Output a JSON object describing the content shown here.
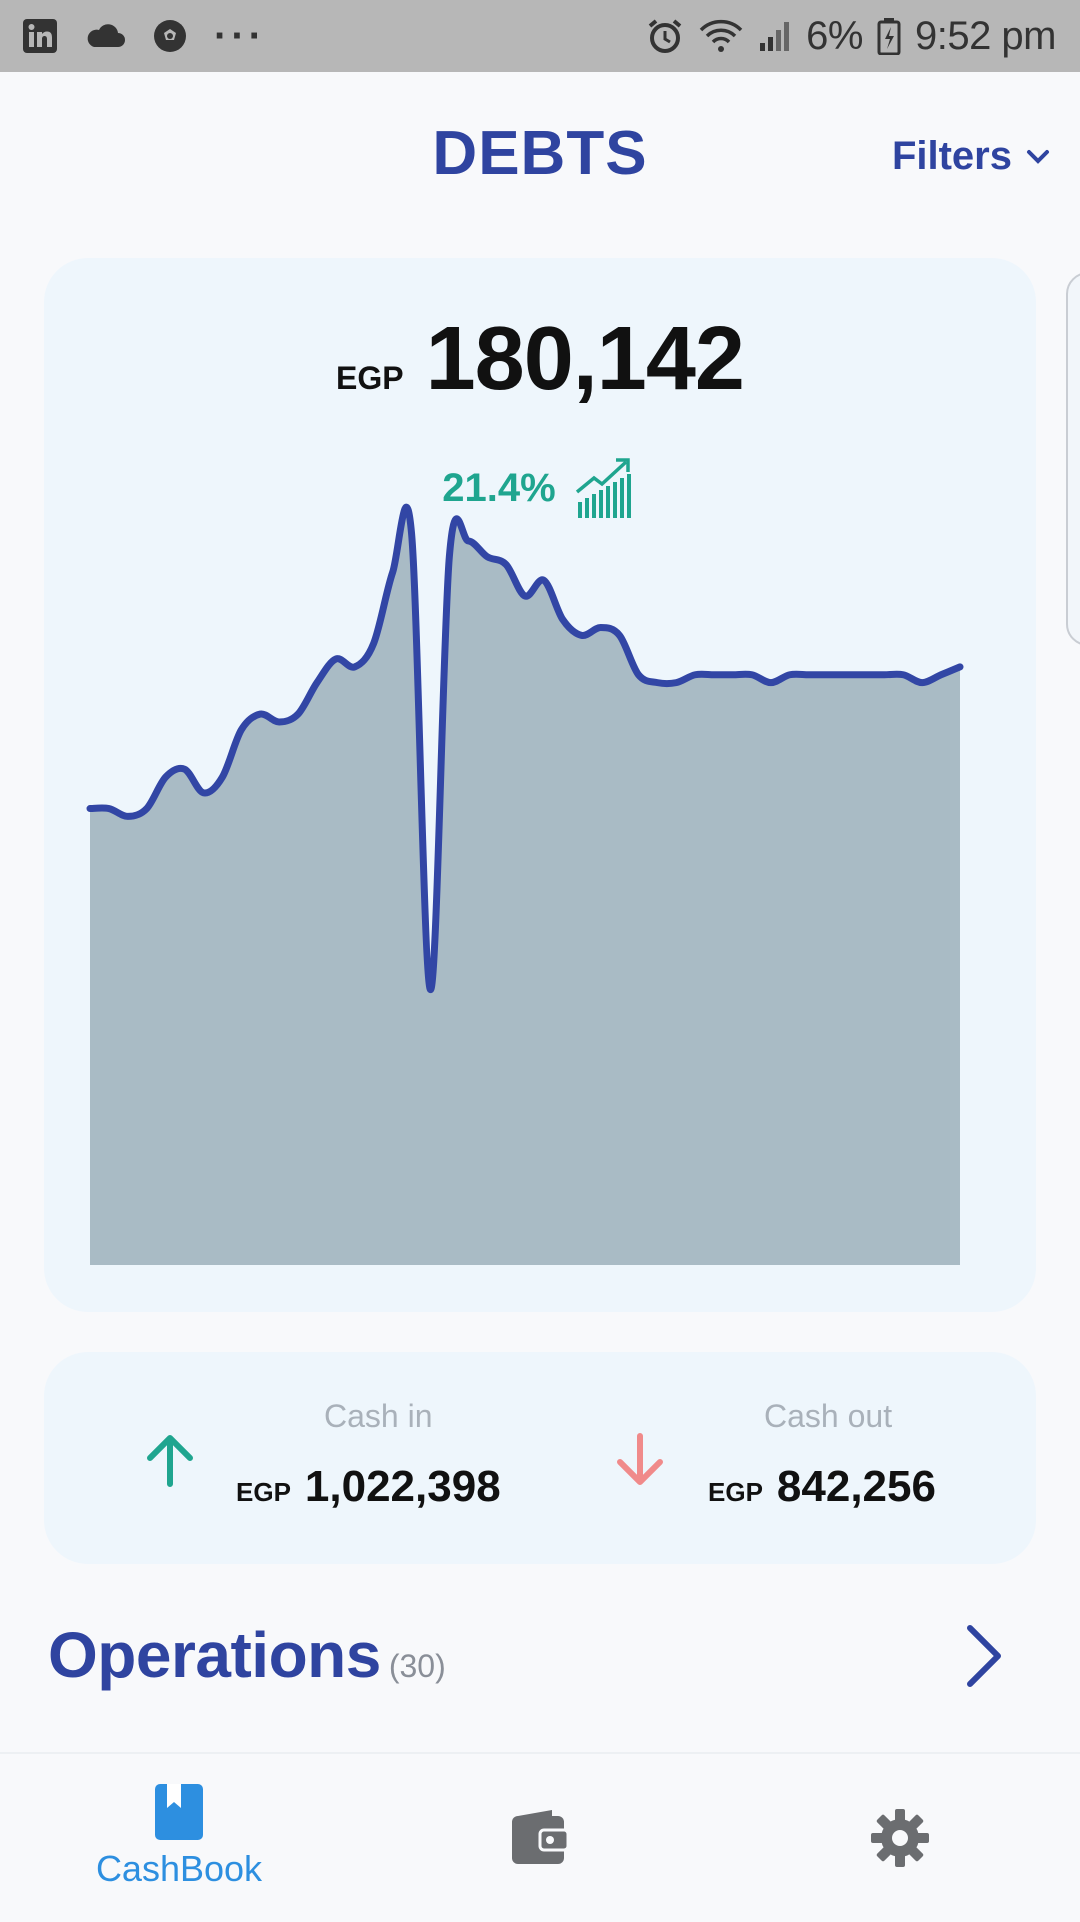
{
  "status_bar": {
    "battery": "6%",
    "time": "9:52 pm",
    "left_icons": [
      "linkedin-icon",
      "cloud-icon",
      "soccer-ball-icon",
      "more-dots-icon"
    ],
    "right_icons": [
      "alarm-icon",
      "wifi-icon",
      "signal-icon",
      "battery-charging-icon"
    ]
  },
  "header": {
    "title": "DEBTS",
    "filters_label": "Filters"
  },
  "summary": {
    "currency": "EGP",
    "total": "180,142",
    "change_pct": "21.4%"
  },
  "chart_data": {
    "type": "area",
    "line_color": "#3246a5",
    "fill_color": "#a9bbc5",
    "grid": false,
    "y_range": [
      0,
      100
    ],
    "values": [
      58,
      58,
      57,
      58,
      62,
      63,
      60,
      62,
      68,
      70,
      69,
      70,
      74,
      77,
      76,
      79,
      88,
      93,
      35,
      90,
      92,
      90,
      89,
      85,
      87,
      82,
      80,
      81,
      80,
      75,
      74,
      74,
      75,
      75,
      75,
      75,
      74,
      75,
      75,
      75,
      75,
      75,
      75,
      75,
      74,
      75,
      76
    ]
  },
  "cash": {
    "in_label": "Cash in",
    "in_currency": "EGP",
    "in_amount": "1,022,398",
    "in_color": "#1fa58f",
    "out_label": "Cash out",
    "out_currency": "EGP",
    "out_amount": "842,256",
    "out_color": "#f08a8a"
  },
  "operations": {
    "title": "Operations",
    "count": "(30)"
  },
  "bottom_nav": {
    "items": [
      {
        "label": "CashBook",
        "icon": "book-icon",
        "active": true
      },
      {
        "label": "",
        "icon": "wallet-icon",
        "active": false
      },
      {
        "label": "",
        "icon": "gear-icon",
        "active": false
      }
    ]
  }
}
